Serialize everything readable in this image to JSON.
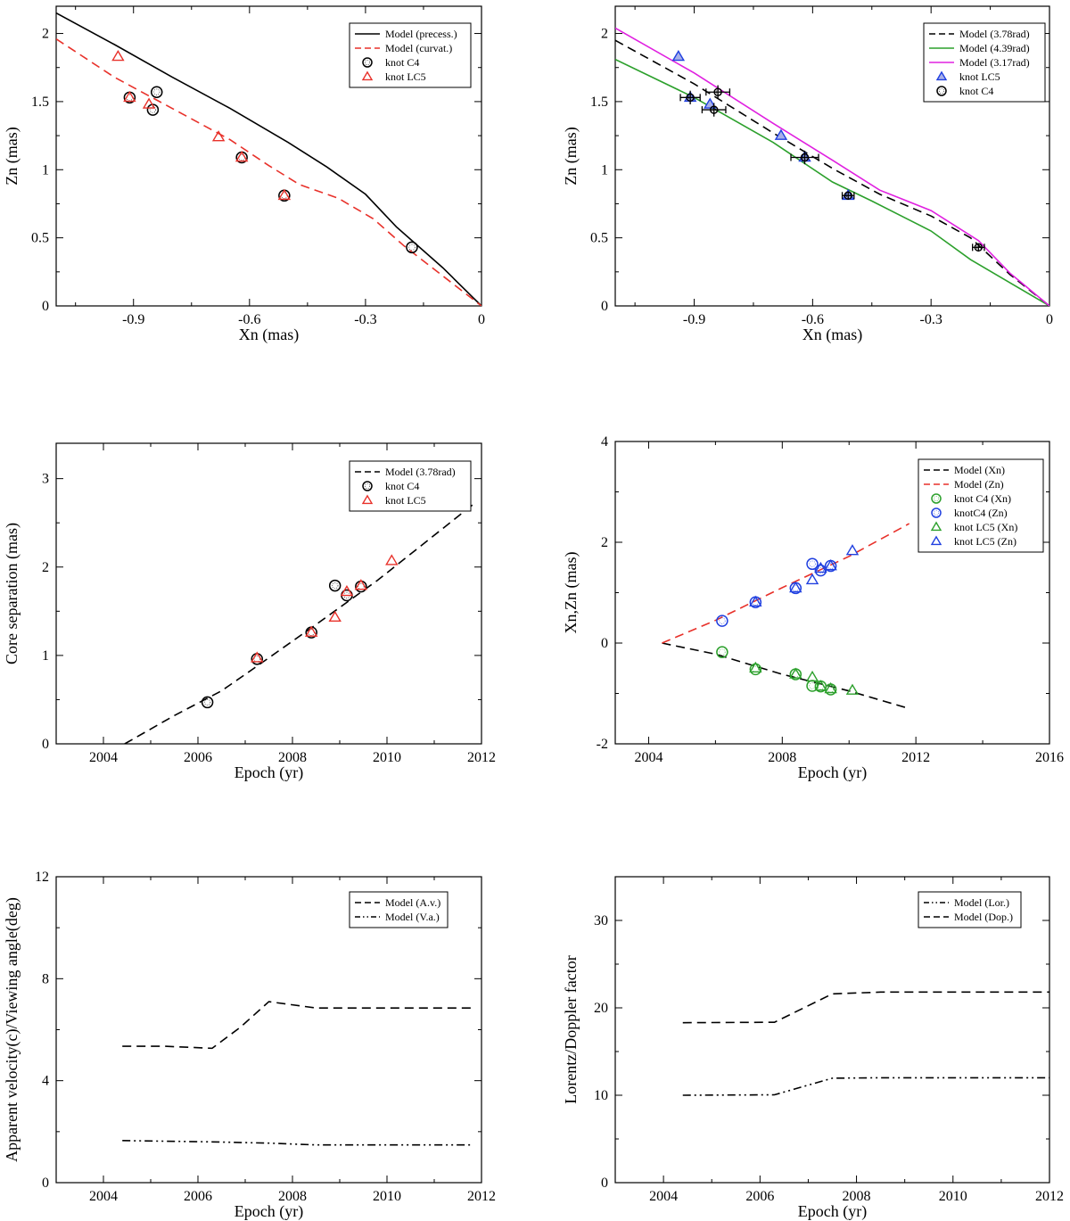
{
  "chart_data": [
    {
      "id": "p1",
      "type": "scatter",
      "xlabel": "Xn (mas)",
      "ylabel": "Zn (mas)",
      "xlim": [
        -1.1,
        0
      ],
      "ylim": [
        0,
        2.2
      ],
      "xticks": [
        -0.9,
        -0.6,
        -0.3,
        0
      ],
      "xtick_labels": [
        "-0.9",
        "-0.6",
        "-0.3",
        "0"
      ],
      "yticks": [
        0,
        0.5,
        1,
        1.5,
        2
      ],
      "ytick_labels": [
        "0",
        "0.5",
        "1",
        "1.5",
        "2"
      ],
      "legend_position": "top-right",
      "series": [
        {
          "name": "Model (precess.)",
          "kind": "line",
          "color": "#000000",
          "dash": "solid",
          "x": [
            -1.1,
            -0.95,
            -0.8,
            -0.65,
            -0.5,
            -0.4,
            -0.3,
            -0.22,
            -0.1,
            0
          ],
          "y": [
            2.15,
            1.92,
            1.68,
            1.45,
            1.2,
            1.02,
            0.82,
            0.58,
            0.28,
            0
          ]
        },
        {
          "name": "Model (curvat.)",
          "kind": "line",
          "color": "#e8312a",
          "dash": "dashed",
          "x": [
            -1.1,
            -0.95,
            -0.8,
            -0.65,
            -0.55,
            -0.47,
            -0.37,
            -0.28,
            -0.2,
            -0.1,
            0
          ],
          "y": [
            1.96,
            1.68,
            1.45,
            1.22,
            1.03,
            0.89,
            0.79,
            0.64,
            0.44,
            0.22,
            0
          ]
        },
        {
          "name": "knot C4",
          "kind": "circle",
          "color": "#000000",
          "x": [
            -0.91,
            -0.85,
            -0.84,
            -0.62,
            -0.51,
            -0.18
          ],
          "y": [
            1.53,
            1.44,
            1.57,
            1.09,
            0.81,
            0.43
          ]
        },
        {
          "name": "knot LC5",
          "kind": "triangle",
          "color": "#e8312a",
          "x": [
            -0.94,
            -0.91,
            -0.86,
            -0.68,
            -0.62,
            -0.51
          ],
          "y": [
            1.83,
            1.53,
            1.48,
            1.24,
            1.09,
            0.81
          ]
        }
      ]
    },
    {
      "id": "p2",
      "type": "scatter",
      "xlabel": "Xn (mas)",
      "ylabel": "Zn (mas)",
      "xlim": [
        -1.1,
        0
      ],
      "ylim": [
        0,
        2.2
      ],
      "xticks": [
        -0.9,
        -0.6,
        -0.3,
        0
      ],
      "xtick_labels": [
        "-0.9",
        "-0.6",
        "-0.3",
        "0"
      ],
      "yticks": [
        0,
        0.5,
        1,
        1.5,
        2
      ],
      "ytick_labels": [
        "0",
        "0.5",
        "1",
        "1.5",
        "2"
      ],
      "legend_position": "top-right",
      "series": [
        {
          "name": "Model (3.78rad)",
          "kind": "line",
          "color": "#000000",
          "dash": "dashed",
          "x": [
            -1.1,
            -0.9,
            -0.7,
            -0.55,
            -0.43,
            -0.3,
            -0.2,
            -0.1,
            0
          ],
          "y": [
            1.95,
            1.63,
            1.27,
            1.01,
            0.82,
            0.66,
            0.5,
            0.23,
            0
          ]
        },
        {
          "name": "Model (4.39rad)",
          "kind": "line",
          "color": "#2ca02c",
          "dash": "solid",
          "x": [
            -1.1,
            -0.9,
            -0.7,
            -0.55,
            -0.45,
            -0.3,
            -0.2,
            -0.1,
            0
          ],
          "y": [
            1.81,
            1.53,
            1.2,
            0.91,
            0.77,
            0.55,
            0.34,
            0.17,
            0
          ]
        },
        {
          "name": "Model (3.17rad)",
          "kind": "line",
          "color": "#e020e0",
          "dash": "solid",
          "x": [
            -1.1,
            -0.9,
            -0.7,
            -0.55,
            -0.43,
            -0.3,
            -0.18,
            -0.1,
            0
          ],
          "y": [
            2.04,
            1.71,
            1.34,
            1.07,
            0.85,
            0.7,
            0.48,
            0.24,
            0
          ]
        },
        {
          "name": "knot  LC5",
          "kind": "triangle",
          "color": "#2040e0",
          "fill": "#a8b0e8",
          "x": [
            -0.94,
            -0.91,
            -0.86,
            -0.68,
            -0.62,
            -0.51
          ],
          "y": [
            1.83,
            1.53,
            1.48,
            1.25,
            1.09,
            0.81
          ]
        },
        {
          "name": "knot C4",
          "kind": "circle",
          "color": "#000000",
          "errorbars": true,
          "x": [
            -0.91,
            -0.85,
            -0.84,
            -0.62,
            -0.51,
            -0.18
          ],
          "y": [
            1.53,
            1.44,
            1.57,
            1.09,
            0.81,
            0.43
          ],
          "xerr": [
            0.025,
            0.03,
            0.03,
            0.035,
            0.015,
            0.015
          ],
          "yerr": [
            0.05,
            0.05,
            0.05,
            0.05,
            0.03,
            0.03
          ]
        }
      ]
    },
    {
      "id": "p3",
      "type": "scatter",
      "xlabel": "Epoch (yr)",
      "ylabel": "Core separation (mas)",
      "xlim": [
        2003,
        2012
      ],
      "ylim": [
        0,
        3.4
      ],
      "xticks": [
        2004,
        2006,
        2008,
        2010,
        2012
      ],
      "xtick_labels": [
        "2004",
        "2006",
        "2008",
        "2010",
        "2012"
      ],
      "yticks": [
        0,
        1,
        2,
        3
      ],
      "ytick_labels": [
        "0",
        "1",
        "2",
        "3"
      ],
      "legend_position": "top-right",
      "series": [
        {
          "name": "Model (3.78rad)",
          "kind": "line",
          "color": "#000000",
          "dash": "dashed",
          "x": [
            2004.45,
            2005.5,
            2006.5,
            2007.2,
            2008.5,
            2009.8,
            2011.85
          ],
          "y": [
            0,
            0.32,
            0.6,
            0.86,
            1.35,
            1.85,
            2.72
          ]
        },
        {
          "name": "knot C4",
          "kind": "circle",
          "color": "#000000",
          "x": [
            2006.2,
            2007.25,
            2008.4,
            2008.9,
            2009.15,
            2009.45
          ],
          "y": [
            0.47,
            0.96,
            1.26,
            1.79,
            1.68,
            1.78
          ]
        },
        {
          "name": "knot LC5",
          "kind": "triangle",
          "color": "#e8312a",
          "x": [
            2007.25,
            2008.4,
            2008.9,
            2009.15,
            2009.45,
            2010.1
          ],
          "y": [
            0.97,
            1.26,
            1.43,
            1.72,
            1.79,
            2.07
          ]
        }
      ]
    },
    {
      "id": "p4",
      "type": "scatter",
      "xlabel": "Epoch (yr)",
      "ylabel": "Xn,Zn (mas)",
      "xlim": [
        2003,
        2016
      ],
      "ylim": [
        -2,
        4
      ],
      "xticks": [
        2004,
        2008,
        2012,
        2016
      ],
      "xtick_labels": [
        "2004",
        "2008",
        "2012",
        "2016"
      ],
      "yticks": [
        -2,
        0,
        2,
        4
      ],
      "ytick_labels": [
        "-2",
        "0",
        "2",
        "4"
      ],
      "legend_position": "top-right",
      "series": [
        {
          "name": "Model (Xn)",
          "kind": "line",
          "color": "#000000",
          "dash": "dashed",
          "x": [
            2004.4,
            2006.0,
            2008.0,
            2010.0,
            2011.8
          ],
          "y": [
            0,
            -0.22,
            -0.62,
            -0.95,
            -1.3
          ]
        },
        {
          "name": "Model (Zn)",
          "kind": "line",
          "color": "#e8312a",
          "dash": "dashed",
          "x": [
            2004.4,
            2006.0,
            2008.0,
            2010.0,
            2011.8
          ],
          "y": [
            0,
            0.45,
            1.1,
            1.72,
            2.37
          ]
        },
        {
          "name": "knot C4 (Xn)",
          "kind": "circle",
          "color": "#2ca02c",
          "x": [
            2006.2,
            2007.2,
            2008.4,
            2008.9,
            2009.15,
            2009.45
          ],
          "y": [
            -0.18,
            -0.52,
            -0.62,
            -0.85,
            -0.86,
            -0.92
          ]
        },
        {
          "name": "knotC4 (Zn)",
          "kind": "circle",
          "color": "#2040e0",
          "x": [
            2006.2,
            2007.2,
            2008.4,
            2008.9,
            2009.15,
            2009.45
          ],
          "y": [
            0.44,
            0.81,
            1.09,
            1.57,
            1.44,
            1.53
          ]
        },
        {
          "name": "knot LC5 (Xn)",
          "kind": "triangle",
          "color": "#2ca02c",
          "x": [
            2007.2,
            2008.4,
            2008.9,
            2009.15,
            2009.45,
            2010.1
          ],
          "y": [
            -0.5,
            -0.62,
            -0.68,
            -0.86,
            -0.91,
            -0.94
          ]
        },
        {
          "name": "knot LC5 (Zn)",
          "kind": "triangle",
          "color": "#2040e0",
          "x": [
            2007.2,
            2008.4,
            2008.9,
            2009.15,
            2009.45,
            2010.1
          ],
          "y": [
            0.81,
            1.09,
            1.25,
            1.48,
            1.53,
            1.83
          ]
        }
      ]
    },
    {
      "id": "p5",
      "type": "line",
      "xlabel": "Epoch (yr)",
      "ylabel": "Apparent velocity(c)/Viewing angle(deg)",
      "xlim": [
        2003,
        2012
      ],
      "ylim": [
        0,
        12
      ],
      "xticks": [
        2004,
        2006,
        2008,
        2010,
        2012
      ],
      "xtick_labels": [
        "2004",
        "2006",
        "2008",
        "2010",
        "2012"
      ],
      "yticks": [
        0,
        4,
        8,
        12
      ],
      "ytick_labels": [
        "0",
        "4",
        "8",
        "12"
      ],
      "legend_position": "top-right",
      "series": [
        {
          "name": "Model (A.v.)",
          "kind": "line",
          "color": "#000000",
          "dash": "dashed",
          "x": [
            2004.4,
            2005.3,
            2006.3,
            2006.9,
            2007.5,
            2008.5,
            2009.5,
            2010.5,
            2011.8
          ],
          "y": [
            5.35,
            5.35,
            5.27,
            6.1,
            7.1,
            6.85,
            6.85,
            6.85,
            6.85
          ]
        },
        {
          "name": "Model (V.a.)",
          "kind": "line",
          "color": "#000000",
          "dash": "dashdotdot",
          "x": [
            2004.4,
            2006.3,
            2007.5,
            2008.5,
            2010.0,
            2011.8
          ],
          "y": [
            1.65,
            1.6,
            1.55,
            1.48,
            1.48,
            1.48
          ]
        }
      ]
    },
    {
      "id": "p6",
      "type": "line",
      "xlabel": "Epoch (yr)",
      "ylabel": "Lorentz/Doppler factor",
      "xlim": [
        2003,
        2012
      ],
      "ylim": [
        0,
        35
      ],
      "xticks": [
        2004,
        2006,
        2008,
        2010,
        2012
      ],
      "xtick_labels": [
        "2004",
        "2006",
        "2008",
        "2010",
        "2012"
      ],
      "yticks": [
        0,
        10,
        20,
        30
      ],
      "ytick_labels": [
        "0",
        "10",
        "20",
        "30"
      ],
      "legend_position": "top-right",
      "series": [
        {
          "name": "Model (Lor.)",
          "kind": "line",
          "color": "#000000",
          "dash": "dashdotdot",
          "x": [
            2004.4,
            2006.3,
            2007.5,
            2008.5,
            2010.0,
            2012.0
          ],
          "y": [
            10.0,
            10.05,
            11.95,
            12.0,
            12.0,
            12.0
          ]
        },
        {
          "name": "Model (Dop.)",
          "kind": "line",
          "color": "#000000",
          "dash": "dashed",
          "x": [
            2004.4,
            2006.3,
            2007.5,
            2008.5,
            2010.0,
            2012.0
          ],
          "y": [
            18.3,
            18.35,
            21.6,
            21.8,
            21.8,
            21.8
          ]
        }
      ]
    }
  ]
}
